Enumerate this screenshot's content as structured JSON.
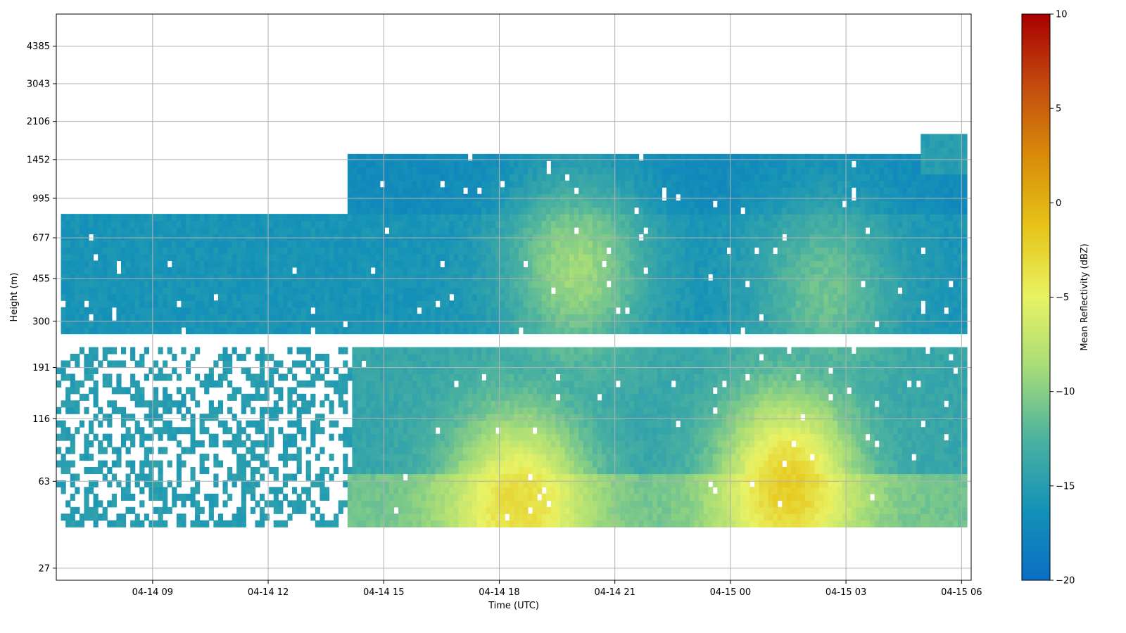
{
  "chart_data": {
    "type": "heatmap",
    "title": "",
    "xlabel": "Time (UTC)",
    "ylabel": "Height (m)",
    "x_ticks": [
      "04-14 09",
      "04-14 12",
      "04-14 15",
      "04-14 18",
      "04-14 21",
      "04-15 00",
      "04-15 03",
      "04-15 06"
    ],
    "x_range": [
      "04-14 06:30",
      "04-15 06:15"
    ],
    "y_ticks": [
      27,
      63,
      116,
      191,
      300,
      455,
      677,
      995,
      1452,
      2106,
      3043,
      4385
    ],
    "y_range": [
      24,
      6000
    ],
    "grid": true,
    "colorbar": {
      "label": "Mean Reflectivity (dBZ)",
      "min": -20,
      "max": 10,
      "ticks": [
        10,
        5,
        0,
        -5,
        -10,
        -15,
        -20
      ],
      "colors": [
        "#0a6ec4",
        "#1592b8",
        "#4cb2a0",
        "#a6dc78",
        "#e8f264",
        "#e6c417",
        "#d88b0a",
        "#c24a0f",
        "#a80000"
      ]
    },
    "layers": [
      {
        "height_range": [
          40,
          70
        ],
        "time_range": [
          "04-14 14:00",
          "04-15 06:10"
        ],
        "value": -11
      },
      {
        "height_range": [
          70,
          230
        ],
        "time_range": [
          "04-14 14:10",
          "04-15 06:10"
        ],
        "value": -14
      },
      {
        "height_range": [
          270,
          850
        ],
        "time_range": [
          "04-14 06:40",
          "04-15 06:10"
        ],
        "value": -16
      },
      {
        "height_range": [
          850,
          1500
        ],
        "time_range": [
          "04-14 14:00",
          "04-15 06:10"
        ],
        "value": -17
      },
      {
        "height_range": [
          1300,
          1900
        ],
        "time_range": [
          "04-15 05:00",
          "04-15 06:10"
        ],
        "value": -15
      }
    ],
    "peaks": [
      {
        "time": "04-14 18:30",
        "height": 50,
        "value": -3
      },
      {
        "time": "04-14 20:00",
        "height": 500,
        "value": -9
      },
      {
        "time": "04-15 01:30",
        "height": 60,
        "value": -2
      },
      {
        "time": "04-15 02:30",
        "height": 400,
        "value": -11
      }
    ]
  }
}
